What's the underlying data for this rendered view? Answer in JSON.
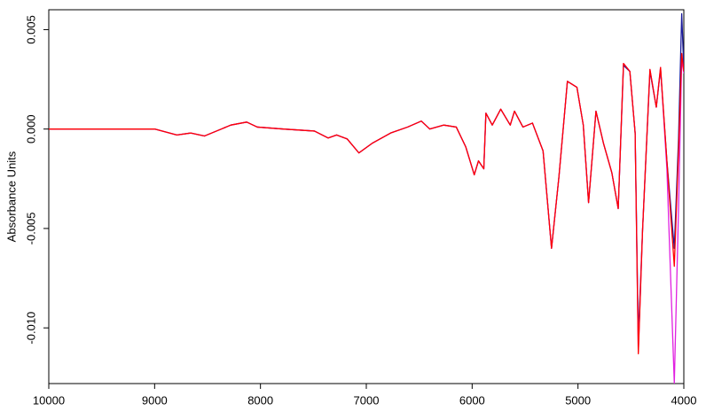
{
  "chart_data": {
    "type": "line",
    "ylabel": "Absorbance Units",
    "x": [
      10000,
      9000,
      8790,
      8660,
      8530,
      8370,
      8280,
      8130,
      8030,
      7780,
      7490,
      7360,
      7280,
      7180,
      7070,
      6940,
      6770,
      6610,
      6480,
      6400,
      6270,
      6150,
      6060,
      5980,
      5940,
      5890,
      5870,
      5810,
      5730,
      5640,
      5600,
      5520,
      5430,
      5330,
      5250,
      5180,
      5100,
      5010,
      4950,
      4900,
      4830,
      4760,
      4680,
      4620,
      4570,
      4510,
      4460,
      4430,
      4390,
      4320,
      4260,
      4220,
      4160,
      4090,
      4050,
      4020,
      4000
    ],
    "series": [
      {
        "color": "#1a1a9c",
        "values": [
          0,
          0,
          -0.0003,
          -0.0002,
          -0.00035,
          0,
          0.0002,
          0.00035,
          0.0001,
          0,
          -0.0001,
          -0.00045,
          -0.0003,
          -0.0005,
          -0.0012,
          -0.0007,
          -0.0002,
          0.0001,
          0.0004,
          0,
          0.0002,
          0.0001,
          -0.0009,
          -0.0023,
          -0.0016,
          -0.002,
          0.0008,
          0.0002,
          0.001,
          0.0002,
          0.0009,
          0.0001,
          0.0003,
          -0.0011,
          -0.006,
          -0.0024,
          0.0024,
          0.0021,
          0.0002,
          -0.0037,
          0.0009,
          -0.0007,
          -0.0022,
          -0.004,
          0.0032,
          0.0029,
          -0.0002,
          -0.0105,
          -0.0051,
          0.0029,
          0.0011,
          0.003,
          -0.0016,
          -0.006,
          -0.0005,
          0.0058,
          0.003
        ]
      },
      {
        "color": "#e020e0",
        "values": [
          0,
          0,
          -0.0003,
          -0.0002,
          -0.00035,
          0,
          0.0002,
          0.00035,
          0.0001,
          0,
          -0.0001,
          -0.00045,
          -0.0003,
          -0.0005,
          -0.0012,
          -0.0007,
          -0.0002,
          0.0001,
          0.0004,
          0,
          0.0002,
          0.0001,
          -0.0009,
          -0.0023,
          -0.0016,
          -0.002,
          0.0008,
          0.0002,
          0.001,
          0.0002,
          0.0009,
          0.0001,
          0.0003,
          -0.0011,
          -0.006,
          -0.0024,
          0.0024,
          0.0021,
          0.0002,
          -0.0037,
          0.0009,
          -0.0007,
          -0.0022,
          -0.004,
          0.0033,
          0.0029,
          -0.0002,
          -0.0112,
          -0.0051,
          0.003,
          0.0011,
          0.0031,
          -0.002,
          -0.0128,
          -0.004,
          0.0035,
          0.0028
        ]
      },
      {
        "color": "#ff0000",
        "values": [
          0,
          0,
          -0.0003,
          -0.0002,
          -0.00035,
          0,
          0.0002,
          0.00035,
          0.0001,
          0,
          -0.0001,
          -0.00045,
          -0.0003,
          -0.0005,
          -0.0012,
          -0.0007,
          -0.0002,
          0.0001,
          0.0004,
          0,
          0.0002,
          0.0001,
          -0.0009,
          -0.0023,
          -0.0016,
          -0.002,
          0.0008,
          0.0002,
          0.001,
          0.0002,
          0.0009,
          0.0001,
          0.0003,
          -0.0011,
          -0.006,
          -0.0024,
          0.0024,
          0.0021,
          0.0002,
          -0.0037,
          0.0009,
          -0.0007,
          -0.0022,
          -0.004,
          0.0033,
          0.0029,
          -0.0002,
          -0.0113,
          -0.0051,
          0.003,
          0.0011,
          0.0031,
          -0.0016,
          -0.0069,
          -0.0011,
          0.0038,
          0.0029
        ]
      }
    ],
    "xlim": [
      10000,
      4000
    ],
    "xticks": [
      10000,
      9000,
      8000,
      7000,
      6000,
      5000,
      4000
    ],
    "ylim": [
      0.006,
      -0.0128
    ],
    "yticks": [
      0.005,
      {
        "value": 0,
        "label": "0.000"
      },
      -0.005,
      {
        "value": -0.01,
        "label": "-0.010"
      }
    ],
    "grid": false
  }
}
